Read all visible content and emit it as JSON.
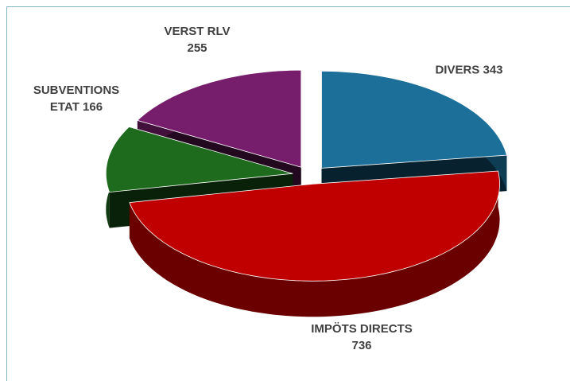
{
  "chart_data": {
    "type": "pie3d",
    "categories": [
      "DIVERS",
      "IMPÖTS DIRECTS",
      "SUBVENTIONS ETAT",
      "VERST RLV"
    ],
    "values": [
      343,
      736,
      166,
      255
    ],
    "colors": [
      "#1b6f98",
      "#c00000",
      "#1e6b1e",
      "#761d6b"
    ]
  }
}
